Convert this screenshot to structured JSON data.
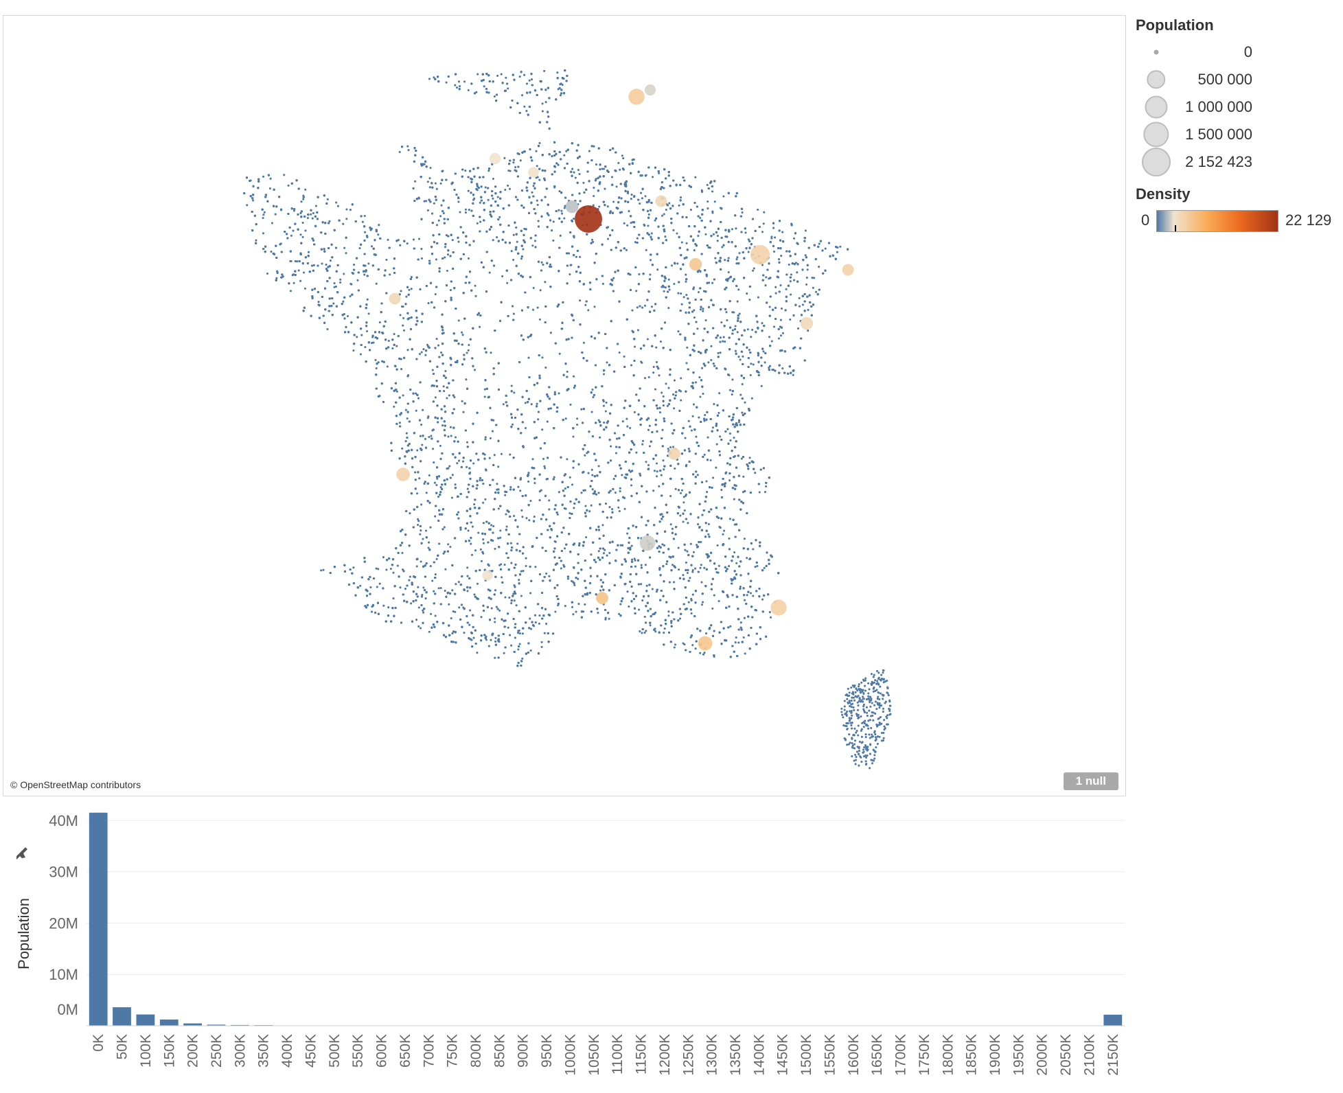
{
  "map": {
    "attribution": "© OpenStreetMap contributors",
    "null_badge": "1 null",
    "dot_color": "#4e79a7"
  },
  "legend": {
    "population_title": "Population",
    "population_items": [
      {
        "label": "0",
        "value": 0
      },
      {
        "label": "500 000",
        "value": 500000
      },
      {
        "label": "1 000 000",
        "value": 1000000
      },
      {
        "label": "1 500 000",
        "value": 1500000
      },
      {
        "label": "2 152 423",
        "value": 2152423
      }
    ],
    "density_title": "Density",
    "density_min": "0",
    "density_max": "22 129",
    "density_colors": [
      "#4e79a7",
      "#f0e3d0",
      "#f8b05c",
      "#ee6b1f",
      "#a23216"
    ]
  },
  "chart_data": [
    {
      "type": "scatter",
      "subtype": "symbol-map",
      "size_field": "Population",
      "color_field": "Density",
      "size_range": [
        0,
        2152423
      ],
      "color_range": [
        0,
        22129
      ],
      "null_count": 1,
      "highlight_points": [
        {
          "name": "",
          "density": 22129,
          "population": 2152423
        },
        {
          "name": "",
          "density": 3500,
          "population": 500000
        },
        {
          "name": "",
          "density": 3000,
          "population": 850000
        },
        {
          "name": "",
          "density": 3200,
          "population": 480000
        },
        {
          "name": "",
          "density": 4000,
          "population": 340000
        },
        {
          "name": "",
          "density": 2500,
          "population": 230000
        },
        {
          "name": "",
          "density": 3000,
          "population": 280000
        },
        {
          "name": "",
          "density": 2800,
          "population": 200000
        },
        {
          "name": "",
          "density": 3000,
          "population": 170000
        },
        {
          "name": "",
          "density": 2600,
          "population": 180000
        },
        {
          "name": "",
          "density": 3800,
          "population": 230000
        },
        {
          "name": "",
          "density": 2600,
          "population": 170000
        },
        {
          "name": "",
          "density": 4200,
          "population": 200000
        },
        {
          "name": "",
          "density": 1800,
          "population": 150000
        },
        {
          "name": "",
          "density": 1500,
          "population": 140000
        },
        {
          "name": "",
          "density": 2000,
          "population": 120000
        },
        {
          "name": "",
          "density": 1400,
          "population": 450000
        },
        {
          "name": "",
          "density": 1200,
          "population": 240000
        },
        {
          "name": "",
          "density": 1900,
          "population": 110000
        }
      ]
    },
    {
      "type": "bar",
      "ylabel": "Population",
      "categories": [
        "0K",
        "50K",
        "100K",
        "150K",
        "200K",
        "250K",
        "300K",
        "350K",
        "400K",
        "450K",
        "500K",
        "550K",
        "600K",
        "650K",
        "700K",
        "750K",
        "800K",
        "850K",
        "900K",
        "950K",
        "1000K",
        "1050K",
        "1100K",
        "1150K",
        "1200K",
        "1250K",
        "1300K",
        "1350K",
        "1400K",
        "1450K",
        "1500K",
        "1550K",
        "1600K",
        "1650K",
        "1700K",
        "1750K",
        "1800K",
        "1850K",
        "1900K",
        "1950K",
        "2000K",
        "2050K",
        "2100K",
        "2150K"
      ],
      "values": [
        41500000,
        3600000,
        2200000,
        1200000,
        450000,
        220000,
        150000,
        120000,
        0,
        0,
        0,
        0,
        0,
        0,
        0,
        0,
        0,
        0,
        0,
        0,
        0,
        0,
        0,
        0,
        0,
        0,
        0,
        0,
        0,
        0,
        0,
        0,
        0,
        0,
        0,
        0,
        0,
        0,
        0,
        0,
        0,
        0,
        0,
        2150000
      ],
      "yticks": [
        {
          "value": 0,
          "label": "0M"
        },
        {
          "value": 10000000,
          "label": "10M"
        },
        {
          "value": 20000000,
          "label": "20M"
        },
        {
          "value": 30000000,
          "label": "30M"
        },
        {
          "value": 40000000,
          "label": "40M"
        }
      ],
      "ylim": [
        0,
        42000000
      ],
      "grid": true,
      "bar_color": "#4e79a7"
    }
  ]
}
